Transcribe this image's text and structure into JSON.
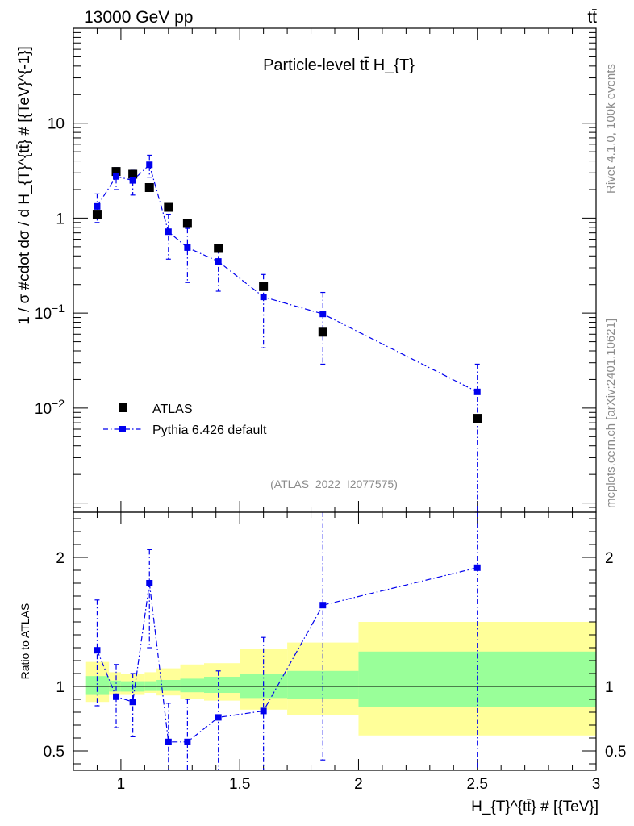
{
  "header": {
    "energy_label": "13000 GeV pp",
    "process_label": "tt̄"
  },
  "side": {
    "rivet_label": "Rivet 4.1.0,  100k events",
    "source_label": "mcplots.cern.ch [arXiv:2401.10621]"
  },
  "chart_data": [
    {
      "type": "scatter",
      "panel": "main",
      "title": "Particle-level tt̄  H_{T}",
      "analysis_label": "(ATLAS_2022_I2077575)",
      "xlabel": "H_{T}^{tt̄} # [{TeV}]",
      "ylabel": "1 / σ #cdot dσ / d H_{T}^{tt̄} # [{TeV}^{-1}]",
      "yscale": "log",
      "xlim": [
        0.8,
        3.0
      ],
      "ylim": [
        0.0008,
        100
      ],
      "y_ticks": [
        {
          "value": 0.01,
          "base": "10",
          "exp": "−2"
        },
        {
          "value": 0.1,
          "base": "10",
          "exp": "−1"
        },
        {
          "value": 1,
          "base": "1",
          "exp": ""
        },
        {
          "value": 10,
          "base": "10",
          "exp": ""
        }
      ],
      "legend": [
        "ATLAS",
        "Pythia 6.426 default"
      ],
      "series": [
        {
          "name": "ATLAS",
          "color": "#000000",
          "x": [
            0.9,
            0.98,
            1.05,
            1.12,
            1.2,
            1.28,
            1.41,
            1.6,
            1.85,
            2.5
          ],
          "y": [
            1.1,
            3.1,
            2.9,
            2.1,
            1.3,
            0.88,
            0.48,
            0.19,
            0.063,
            0.0078
          ]
        },
        {
          "name": "Pythia 6.426 default",
          "color": "#0000ee",
          "x": [
            0.9,
            0.98,
            1.05,
            1.12,
            1.2,
            1.28,
            1.41,
            1.6,
            1.85,
            2.5
          ],
          "y": [
            1.33,
            2.75,
            2.5,
            3.65,
            0.72,
            0.49,
            0.35,
            0.148,
            0.098,
            0.0148
          ],
          "y_low": [
            0.9,
            2.0,
            1.75,
            2.7,
            0.37,
            0.21,
            0.17,
            0.043,
            0.029,
            0.0008
          ],
          "y_high": [
            1.8,
            3.4,
            3.2,
            4.6,
            1.1,
            0.78,
            0.52,
            0.255,
            0.165,
            0.029
          ]
        }
      ]
    },
    {
      "type": "scatter",
      "panel": "ratio",
      "ylabel": "Ratio to ATLAS",
      "xlabel": "H_{T}^{tt̄} # [{TeV}]",
      "xlim": [
        0.8,
        3.0
      ],
      "ylim": [
        0.35,
        2.35
      ],
      "x_ticks": [
        1,
        1.5,
        2,
        2.5,
        3
      ],
      "x_tick_labels": [
        "1",
        "1.5",
        "2",
        "2.5",
        "3"
      ],
      "y_ticks": [
        0.5,
        1,
        2
      ],
      "y_tick_labels": [
        "0.5",
        "1",
        "2"
      ],
      "bands": {
        "edges": [
          0.85,
          0.95,
          1.0,
          1.1,
          1.15,
          1.25,
          1.35,
          1.5,
          1.7,
          2.0,
          3.0
        ],
        "inner_low": [
          0.94,
          0.96,
          0.96,
          0.965,
          0.965,
          0.955,
          0.95,
          0.91,
          0.9,
          0.84
        ],
        "inner_high": [
          1.08,
          1.045,
          1.04,
          1.04,
          1.05,
          1.06,
          1.075,
          1.1,
          1.12,
          1.27
        ],
        "outer_low": [
          0.88,
          0.94,
          0.94,
          0.95,
          0.93,
          0.9,
          0.89,
          0.82,
          0.78,
          0.62
        ],
        "outer_high": [
          1.19,
          1.11,
          1.1,
          1.11,
          1.14,
          1.17,
          1.18,
          1.29,
          1.34,
          1.5
        ],
        "inner_color": "#99ff99",
        "outer_color": "#ffff99"
      },
      "series": [
        {
          "name": "Pythia 6.426 default / ATLAS",
          "color": "#0000ee",
          "x": [
            0.9,
            0.98,
            1.05,
            1.12,
            1.2,
            1.28,
            1.41,
            1.6,
            1.85,
            2.5
          ],
          "y": [
            1.28,
            0.92,
            0.88,
            1.8,
            0.57,
            0.57,
            0.76,
            0.81,
            1.63,
            1.92
          ],
          "y_low": [
            0.85,
            0.68,
            0.61,
            1.3,
            0.3,
            0.24,
            0.35,
            0.3,
            0.43,
            0.1
          ],
          "y_high": [
            1.67,
            1.17,
            1.1,
            2.06,
            0.87,
            0.9,
            1.12,
            1.38,
            2.35,
            2.35
          ]
        }
      ]
    }
  ]
}
